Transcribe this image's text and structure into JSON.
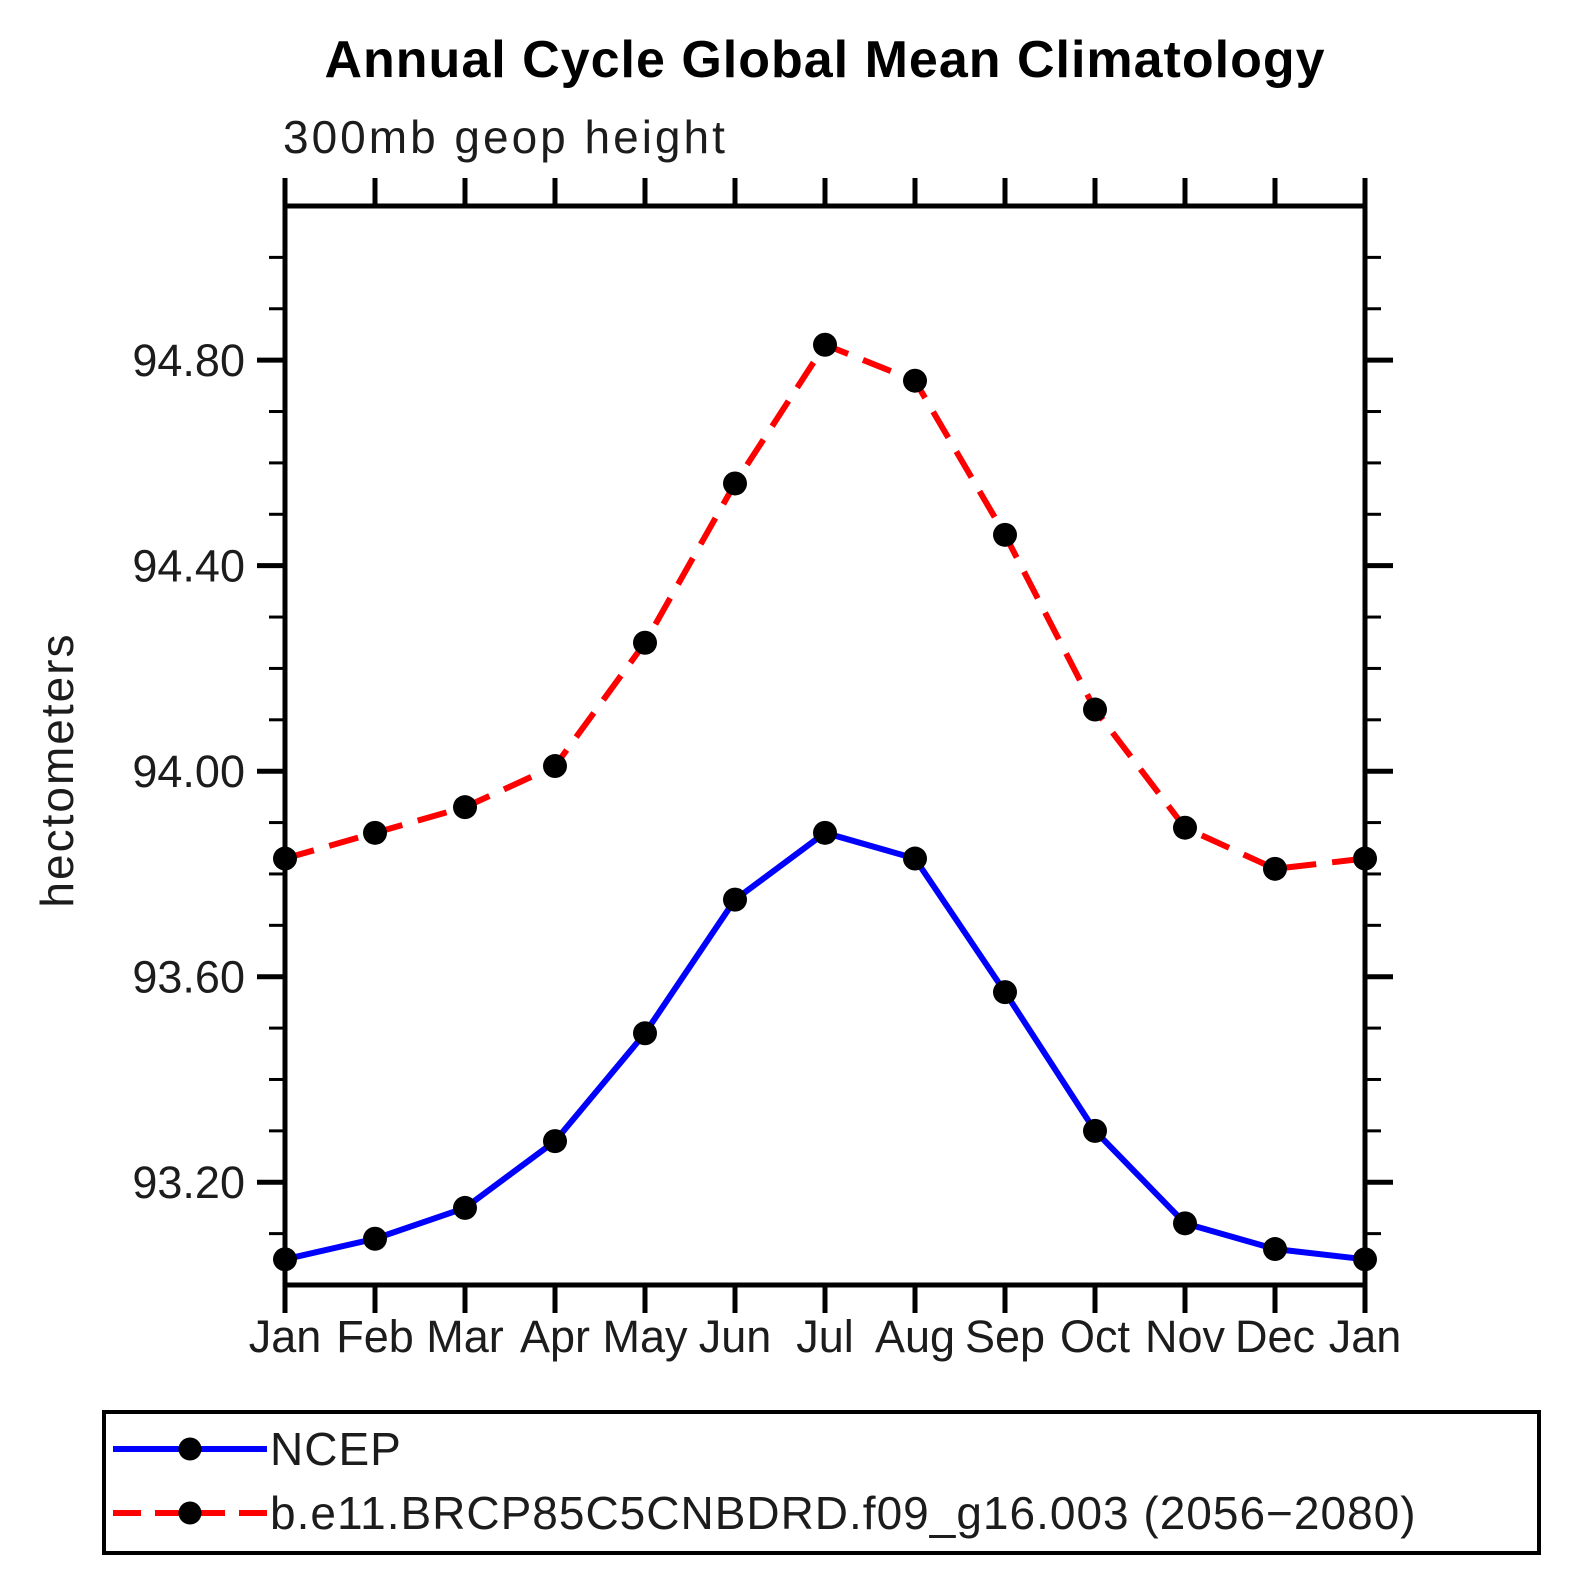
{
  "chart_data": {
    "type": "line",
    "title": "Annual Cycle Global Mean Climatology",
    "subtitle": "300mb geop height",
    "ylabel": "hectometers",
    "xlabel": "",
    "categories": [
      "Jan",
      "Feb",
      "Mar",
      "Apr",
      "May",
      "Jun",
      "Jul",
      "Aug",
      "Sep",
      "Oct",
      "Nov",
      "Dec",
      "Jan"
    ],
    "ylim": [
      93.0,
      95.1
    ],
    "yticks_major": [
      93.2,
      93.6,
      94.0,
      94.4,
      94.8
    ],
    "ytick_minor_step": 0.1,
    "ytick_label_format_decimals": 2,
    "grid": false,
    "axis_color": "#000000",
    "marker": "filled-circle",
    "marker_color": "#000000",
    "series": [
      {
        "name": "NCEP",
        "color": "#0000ff",
        "line_style": "solid",
        "values": [
          93.05,
          93.09,
          93.15,
          93.28,
          93.49,
          93.75,
          93.88,
          93.83,
          93.57,
          93.3,
          93.12,
          93.07,
          93.05
        ]
      },
      {
        "name": "b.e11.BRCP85C5CNBDRD.f09_g16.003 (2056−2080)",
        "color": "#ff0000",
        "line_style": "dashed",
        "dash": "30 16",
        "values": [
          93.83,
          93.88,
          93.93,
          94.01,
          94.25,
          94.56,
          94.83,
          94.76,
          94.46,
          94.12,
          93.89,
          93.81,
          93.83
        ]
      }
    ],
    "legend_position": "bottom-left-box"
  },
  "legend": {
    "entries": [
      {
        "label": "NCEP",
        "color": "#0000ff",
        "style": "solid"
      },
      {
        "label": "b.e11.BRCP85C5CNBDRD.f09_g16.003 (2056−2080)",
        "color": "#ff0000",
        "style": "dashed"
      }
    ]
  }
}
